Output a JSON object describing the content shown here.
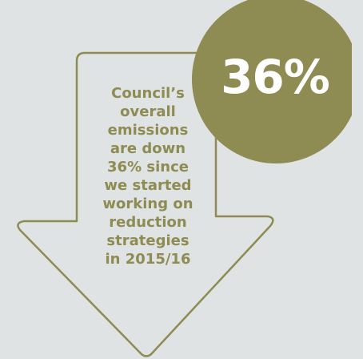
{
  "colors": {
    "background": "#dfe3e4",
    "accent": "#8e8b53",
    "badge_text": "#ffffff"
  },
  "badge": {
    "value": "36%"
  },
  "message": {
    "lines": [
      "Council’s",
      "overall",
      "emissions",
      "are down",
      "36% since",
      "we started",
      "working on",
      "reduction",
      "strategies",
      "in 2015/16"
    ]
  }
}
